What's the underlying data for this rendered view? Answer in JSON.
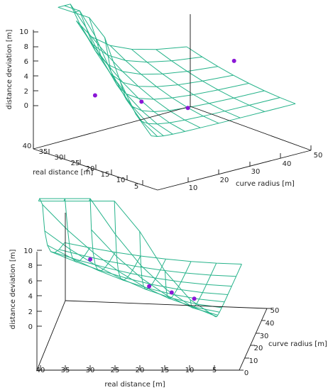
{
  "chart_data": [
    {
      "type": "surface3d",
      "view": "upper",
      "zlabel": "distance deviation [m]",
      "ylabel": "real distance [m]",
      "xlabel": "curve radius [m]",
      "z_ticks": [
        "0",
        "2",
        "4",
        "6",
        "8",
        "10"
      ],
      "y_ticks": [
        "40",
        "35",
        "30",
        "25",
        "20",
        "15",
        "10",
        "5"
      ],
      "x_ticks": [
        "10",
        "20",
        "30",
        "40",
        "50"
      ],
      "xlim": [
        0,
        50
      ],
      "ylim": [
        0,
        40
      ],
      "zlim": [
        0,
        10
      ],
      "grid": false,
      "surface_color": "#26b38a",
      "points_color": "#8a16d6",
      "points": [
        {
          "x": 10,
          "y": 30,
          "z": 2
        },
        {
          "x": 15,
          "y": 20,
          "z": 2
        },
        {
          "x": 20,
          "y": 10,
          "z": 2
        },
        {
          "x": 30,
          "y": 5,
          "z": 8
        }
      ]
    },
    {
      "type": "surface3d",
      "view": "lower",
      "zlabel": "distance deviation [m]",
      "ylabel": "real distance [m]",
      "xlabel": "curve radius [m]",
      "z_ticks": [
        "0",
        "2",
        "4",
        "6",
        "8",
        "10"
      ],
      "y_ticks": [
        "40",
        "35",
        "30",
        "25",
        "20",
        "15",
        "10",
        "5"
      ],
      "x_ticks": [
        "0",
        "10",
        "20",
        "30",
        "40",
        "50"
      ],
      "xlim": [
        0,
        50
      ],
      "ylim": [
        0,
        40
      ],
      "zlim": [
        0,
        10
      ],
      "grid": false,
      "surface_color": "#26b38a",
      "points_color": "#8a16d6",
      "points": [
        {
          "x": 10,
          "y": 10,
          "z": 2
        },
        {
          "x": 15,
          "y": 15,
          "z": 2
        },
        {
          "x": 20,
          "y": 20,
          "z": 2
        },
        {
          "x": 5,
          "y": 30,
          "z": 8
        }
      ]
    }
  ]
}
